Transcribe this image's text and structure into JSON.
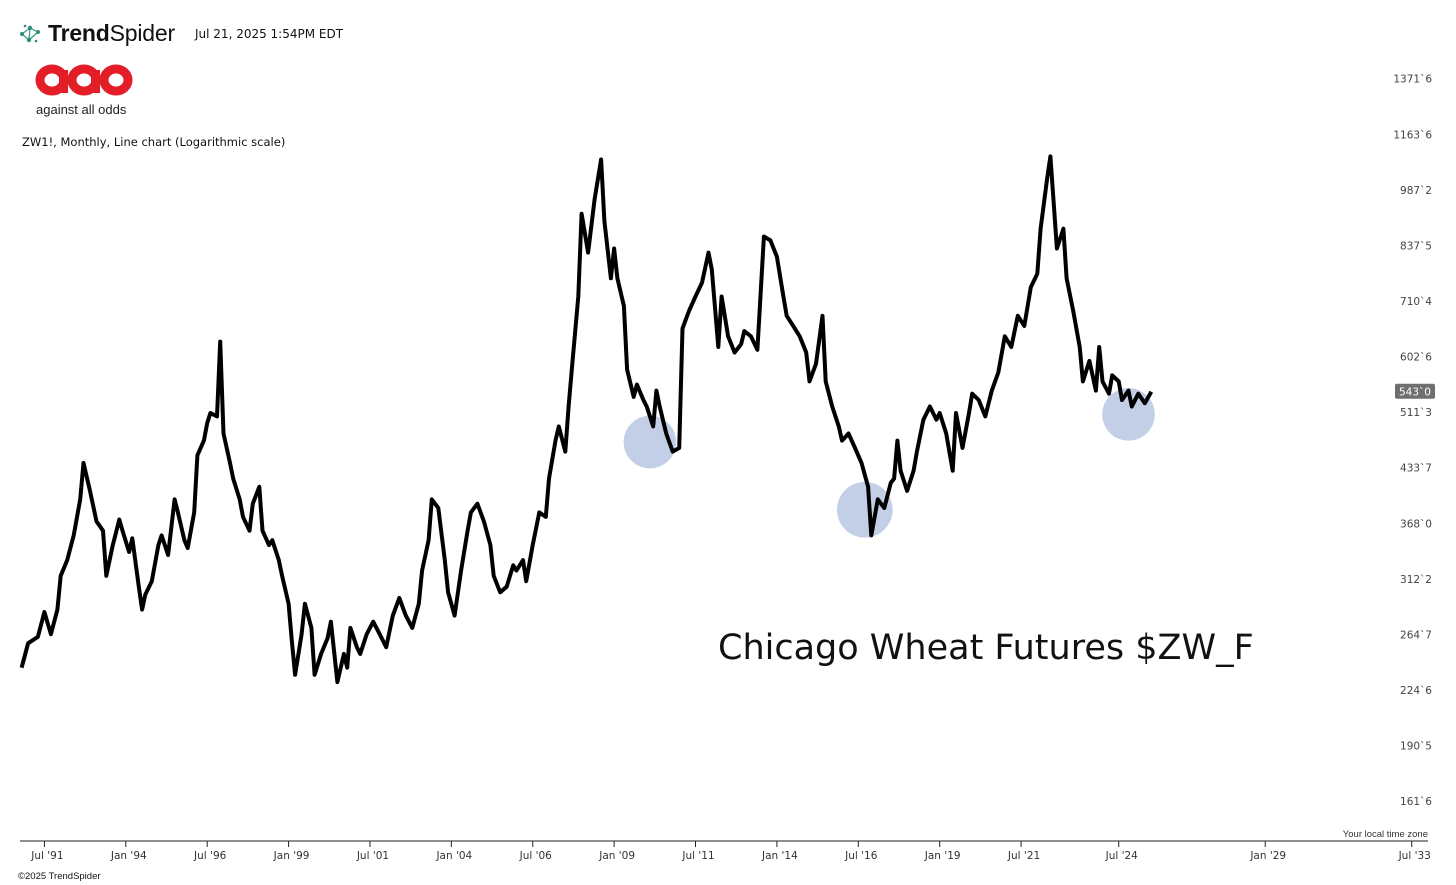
{
  "header": {
    "brand_bold": "Trend",
    "brand_light": "Spider",
    "timestamp": "Jul 21, 2025 1:54PM EDT",
    "logo_tagline": "against all odds",
    "descriptor": "ZW1!, Monthly, Line chart (Logarithmic scale)"
  },
  "footer": {
    "copyright": "©2025 TrendSpider",
    "timezone_note": "Your local time zone"
  },
  "colors": {
    "line": "#000000",
    "highlight": "#aebfdf",
    "logo_red": "#e31e26",
    "price_tag": "#6f6f6f"
  },
  "icons": {
    "brand": "trendspider-network-icon"
  },
  "chart_data": {
    "type": "line",
    "title": "",
    "annotation": "Chicago Wheat Futures $ZW_F",
    "scale": "log",
    "xlabel": "",
    "ylabel": "",
    "x_range": [
      1990.75,
      2034.0
    ],
    "y_range": [
      152,
      1450
    ],
    "grid": false,
    "last_price_label": "543`0",
    "last_price": 543,
    "x_ticks": [
      {
        "label": "Jul '91",
        "t": 1991.5
      },
      {
        "label": "Jan '94",
        "t": 1994.0
      },
      {
        "label": "Jul '96",
        "t": 1996.5
      },
      {
        "label": "Jan '99",
        "t": 1999.0
      },
      {
        "label": "Jul '01",
        "t": 2001.5
      },
      {
        "label": "Jan '04",
        "t": 2004.0
      },
      {
        "label": "Jul '06",
        "t": 2006.5
      },
      {
        "label": "Jan '09",
        "t": 2009.0
      },
      {
        "label": "Jul '11",
        "t": 2011.5
      },
      {
        "label": "Jan '14",
        "t": 2014.0
      },
      {
        "label": "Jul '16",
        "t": 2016.5
      },
      {
        "label": "Jan '19",
        "t": 2019.0
      },
      {
        "label": "Jul '21",
        "t": 2021.5
      },
      {
        "label": "Jul '24",
        "t": 2024.5
      },
      {
        "label": "Jan '29",
        "t": 2029.0
      },
      {
        "label": "Jul '33",
        "t": 2033.5
      }
    ],
    "y_ticks": [
      {
        "label": "1371`6",
        "v": 1371.75
      },
      {
        "label": "1163`6",
        "v": 1163.75
      },
      {
        "label": "987`2",
        "v": 987.25
      },
      {
        "label": "837`5",
        "v": 837.625
      },
      {
        "label": "710`4",
        "v": 710.5
      },
      {
        "label": "602`6",
        "v": 602.75
      },
      {
        "label": "511`3",
        "v": 511.375
      },
      {
        "label": "433`7",
        "v": 433.875
      },
      {
        "label": "368`0",
        "v": 368.0
      },
      {
        "label": "312`2",
        "v": 312.25
      },
      {
        "label": "264`7",
        "v": 264.875
      },
      {
        "label": "224`6",
        "v": 224.75
      },
      {
        "label": "190`5",
        "v": 190.625
      },
      {
        "label": "161`6",
        "v": 161.75
      }
    ],
    "highlights": [
      {
        "center": [
          2010.1,
          468
        ],
        "radius_years": 0.85
      },
      {
        "center": [
          2016.7,
          383
        ],
        "radius_years": 0.9
      },
      {
        "center": [
          2024.8,
          508
        ],
        "radius_years": 0.85
      }
    ],
    "series": [
      {
        "values": [
          [
            1990.8,
            240
          ],
          [
            1991.0,
            258
          ],
          [
            1991.3,
            263
          ],
          [
            1991.5,
            283
          ],
          [
            1991.7,
            265
          ],
          [
            1991.9,
            285
          ],
          [
            1992.0,
            315
          ],
          [
            1992.2,
            330
          ],
          [
            1992.4,
            355
          ],
          [
            1992.6,
            395
          ],
          [
            1992.7,
            440
          ],
          [
            1992.9,
            405
          ],
          [
            1993.1,
            370
          ],
          [
            1993.3,
            360
          ],
          [
            1993.4,
            315
          ],
          [
            1993.6,
            345
          ],
          [
            1993.8,
            372
          ],
          [
            1993.9,
            360
          ],
          [
            1994.1,
            338
          ],
          [
            1994.2,
            352
          ],
          [
            1994.4,
            305
          ],
          [
            1994.5,
            285
          ],
          [
            1994.6,
            298
          ],
          [
            1994.8,
            310
          ],
          [
            1995.0,
            345
          ],
          [
            1995.1,
            355
          ],
          [
            1995.3,
            335
          ],
          [
            1995.5,
            395
          ],
          [
            1995.6,
            380
          ],
          [
            1995.8,
            350
          ],
          [
            1995.9,
            342
          ],
          [
            1996.1,
            380
          ],
          [
            1996.2,
            450
          ],
          [
            1996.4,
            470
          ],
          [
            1996.5,
            495
          ],
          [
            1996.6,
            510
          ],
          [
            1996.8,
            505
          ],
          [
            1996.9,
            630
          ],
          [
            1997.0,
            480
          ],
          [
            1997.2,
            440
          ],
          [
            1997.3,
            420
          ],
          [
            1997.5,
            395
          ],
          [
            1997.6,
            375
          ],
          [
            1997.8,
            360
          ],
          [
            1997.9,
            390
          ],
          [
            1998.1,
            410
          ],
          [
            1998.2,
            360
          ],
          [
            1998.4,
            345
          ],
          [
            1998.5,
            350
          ],
          [
            1998.7,
            330
          ],
          [
            1998.8,
            315
          ],
          [
            1999.0,
            290
          ],
          [
            1999.1,
            260
          ],
          [
            1999.2,
            235
          ],
          [
            1999.4,
            265
          ],
          [
            1999.5,
            290
          ],
          [
            1999.7,
            270
          ],
          [
            1999.8,
            235
          ],
          [
            2000.0,
            250
          ],
          [
            2000.2,
            262
          ],
          [
            2000.3,
            275
          ],
          [
            2000.5,
            230
          ],
          [
            2000.7,
            250
          ],
          [
            2000.8,
            240
          ],
          [
            2000.9,
            270
          ],
          [
            2001.1,
            255
          ],
          [
            2001.2,
            250
          ],
          [
            2001.4,
            265
          ],
          [
            2001.6,
            275
          ],
          [
            2001.8,
            265
          ],
          [
            2002.0,
            255
          ],
          [
            2002.2,
            280
          ],
          [
            2002.4,
            295
          ],
          [
            2002.6,
            280
          ],
          [
            2002.8,
            270
          ],
          [
            2003.0,
            290
          ],
          [
            2003.1,
            320
          ],
          [
            2003.3,
            350
          ],
          [
            2003.4,
            395
          ],
          [
            2003.6,
            385
          ],
          [
            2003.8,
            330
          ],
          [
            2003.9,
            300
          ],
          [
            2004.1,
            280
          ],
          [
            2004.3,
            320
          ],
          [
            2004.5,
            360
          ],
          [
            2004.6,
            380
          ],
          [
            2004.8,
            390
          ],
          [
            2005.0,
            370
          ],
          [
            2005.2,
            345
          ],
          [
            2005.3,
            315
          ],
          [
            2005.5,
            300
          ],
          [
            2005.7,
            305
          ],
          [
            2005.9,
            325
          ],
          [
            2006.0,
            320
          ],
          [
            2006.2,
            330
          ],
          [
            2006.3,
            310
          ],
          [
            2006.5,
            345
          ],
          [
            2006.7,
            380
          ],
          [
            2006.9,
            375
          ],
          [
            2007.0,
            420
          ],
          [
            2007.2,
            470
          ],
          [
            2007.3,
            490
          ],
          [
            2007.5,
            455
          ],
          [
            2007.6,
            520
          ],
          [
            2007.7,
            580
          ],
          [
            2007.9,
            720
          ],
          [
            2008.0,
            920
          ],
          [
            2008.2,
            820
          ],
          [
            2008.4,
            960
          ],
          [
            2008.6,
            1080
          ],
          [
            2008.7,
            900
          ],
          [
            2008.9,
            760
          ],
          [
            2009.0,
            830
          ],
          [
            2009.1,
            760
          ],
          [
            2009.3,
            700
          ],
          [
            2009.4,
            580
          ],
          [
            2009.6,
            535
          ],
          [
            2009.7,
            555
          ],
          [
            2009.9,
            530
          ],
          [
            2010.0,
            520
          ],
          [
            2010.2,
            490
          ],
          [
            2010.3,
            545
          ],
          [
            2010.4,
            520
          ],
          [
            2010.6,
            480
          ],
          [
            2010.8,
            455
          ],
          [
            2011.0,
            460
          ],
          [
            2011.1,
            655
          ],
          [
            2011.3,
            690
          ],
          [
            2011.5,
            720
          ],
          [
            2011.7,
            750
          ],
          [
            2011.9,
            820
          ],
          [
            2012.0,
            780
          ],
          [
            2012.2,
            620
          ],
          [
            2012.3,
            720
          ],
          [
            2012.5,
            640
          ],
          [
            2012.7,
            610
          ],
          [
            2012.9,
            625
          ],
          [
            2013.0,
            650
          ],
          [
            2013.2,
            640
          ],
          [
            2013.4,
            615
          ],
          [
            2013.6,
            860
          ],
          [
            2013.8,
            850
          ],
          [
            2014.0,
            810
          ],
          [
            2014.2,
            720
          ],
          [
            2014.3,
            680
          ],
          [
            2014.5,
            660
          ],
          [
            2014.7,
            640
          ],
          [
            2014.9,
            610
          ],
          [
            2015.0,
            560
          ],
          [
            2015.2,
            590
          ],
          [
            2015.4,
            680
          ],
          [
            2015.5,
            560
          ],
          [
            2015.7,
            520
          ],
          [
            2015.9,
            490
          ],
          [
            2016.0,
            470
          ],
          [
            2016.2,
            480
          ],
          [
            2016.4,
            460
          ],
          [
            2016.6,
            440
          ],
          [
            2016.8,
            410
          ],
          [
            2016.9,
            355
          ],
          [
            2017.1,
            395
          ],
          [
            2017.3,
            385
          ],
          [
            2017.5,
            415
          ],
          [
            2017.6,
            420
          ],
          [
            2017.7,
            470
          ],
          [
            2017.8,
            430
          ],
          [
            2018.0,
            405
          ],
          [
            2018.2,
            430
          ],
          [
            2018.3,
            455
          ],
          [
            2018.5,
            500
          ],
          [
            2018.7,
            520
          ],
          [
            2018.9,
            500
          ],
          [
            2019.0,
            510
          ],
          [
            2019.2,
            480
          ],
          [
            2019.4,
            430
          ],
          [
            2019.5,
            510
          ],
          [
            2019.7,
            460
          ],
          [
            2019.9,
            510
          ],
          [
            2020.0,
            540
          ],
          [
            2020.2,
            530
          ],
          [
            2020.4,
            505
          ],
          [
            2020.6,
            545
          ],
          [
            2020.8,
            575
          ],
          [
            2021.0,
            640
          ],
          [
            2021.2,
            620
          ],
          [
            2021.4,
            680
          ],
          [
            2021.6,
            660
          ],
          [
            2021.8,
            740
          ],
          [
            2022.0,
            770
          ],
          [
            2022.1,
            880
          ],
          [
            2022.3,
            1020
          ],
          [
            2022.4,
            1090
          ],
          [
            2022.6,
            830
          ],
          [
            2022.8,
            880
          ],
          [
            2022.9,
            760
          ],
          [
            2023.1,
            690
          ],
          [
            2023.3,
            620
          ],
          [
            2023.4,
            560
          ],
          [
            2023.6,
            595
          ],
          [
            2023.8,
            545
          ],
          [
            2023.9,
            620
          ],
          [
            2024.0,
            560
          ],
          [
            2024.2,
            540
          ],
          [
            2024.3,
            570
          ],
          [
            2024.5,
            560
          ],
          [
            2024.6,
            530
          ],
          [
            2024.8,
            545
          ],
          [
            2024.9,
            520
          ],
          [
            2025.1,
            540
          ],
          [
            2025.3,
            525
          ],
          [
            2025.5,
            543
          ]
        ]
      }
    ]
  }
}
